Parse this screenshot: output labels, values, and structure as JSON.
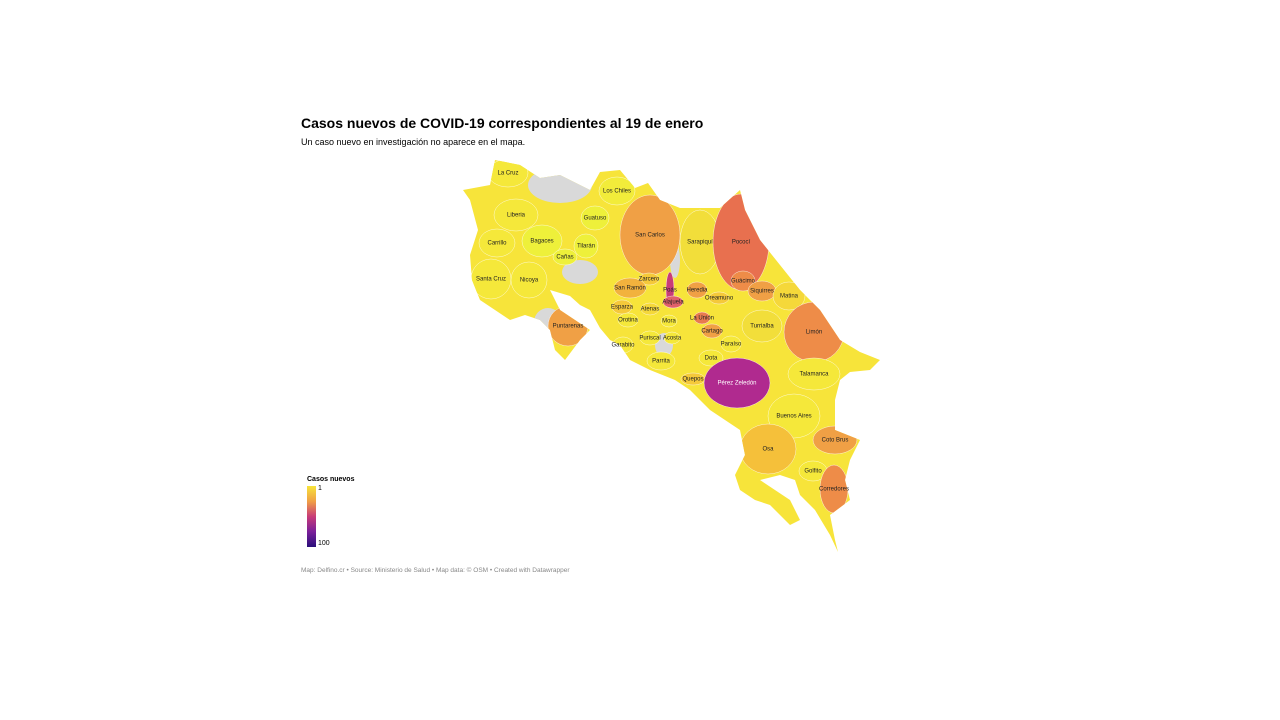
{
  "title": "Casos nuevos de COVID-19 correspondientes al 19 de enero",
  "subtitle": "Un caso nuevo en investigación no aparece en el mapa.",
  "no_data_color": "#d9d9d9",
  "base_color": "#f7e43a",
  "regions": [
    {
      "name": "La Cruz",
      "color": "#f5e83a"
    },
    {
      "name": "Los Chiles",
      "color": "#f2ec3a"
    },
    {
      "name": "Guatuso",
      "color": "#eef03a"
    },
    {
      "name": "Liberia",
      "color": "#f5e83a"
    },
    {
      "name": "Carrillo",
      "color": "#f5e83a"
    },
    {
      "name": "Bagaces",
      "color": "#eef03a"
    },
    {
      "name": "Tilarán",
      "color": "#eef03a"
    },
    {
      "name": "Cañas",
      "color": "#eef03a"
    },
    {
      "name": "San Carlos",
      "color": "#f0a045"
    },
    {
      "name": "Sarapiquí",
      "color": "#f2de3a"
    },
    {
      "name": "Pococí",
      "color": "#e8704f"
    },
    {
      "name": "Santa Cruz",
      "color": "#f5e83a"
    },
    {
      "name": "Nicoya",
      "color": "#f5e83a"
    },
    {
      "name": "Zarcero",
      "color": "#f5c93a"
    },
    {
      "name": "San Ramón",
      "color": "#f2b23d"
    },
    {
      "name": "Guácimo",
      "color": "#ee8c48"
    },
    {
      "name": "Siquirres",
      "color": "#f0a045"
    },
    {
      "name": "Heredia",
      "color": "#f0a045"
    },
    {
      "name": "Poás",
      "color": "#c83c78"
    },
    {
      "name": "Alajuela",
      "color": "#e0606a"
    },
    {
      "name": "Oreamuno",
      "color": "#f5c93a"
    },
    {
      "name": "Matina",
      "color": "#f5d83a"
    },
    {
      "name": "Esparza",
      "color": "#f5c93a"
    },
    {
      "name": "Atenas",
      "color": "#f5d83a"
    },
    {
      "name": "Puntarenas",
      "color": "#f0a045"
    },
    {
      "name": "Orotina",
      "color": "#f5e83a"
    },
    {
      "name": "Mora",
      "color": "#f5e83a"
    },
    {
      "name": "La Unión",
      "color": "#e87a50"
    },
    {
      "name": "Cartago",
      "color": "#f0a045"
    },
    {
      "name": "Turrialba",
      "color": "#f2de3a"
    },
    {
      "name": "Limón",
      "color": "#ee8c48"
    },
    {
      "name": "Garabito",
      "color": "#f5e83a"
    },
    {
      "name": "Puriscal",
      "color": "#f5e83a"
    },
    {
      "name": "Acosta",
      "color": "#f5e83a"
    },
    {
      "name": "Paraíso",
      "color": "#f5e83a"
    },
    {
      "name": "Parrita",
      "color": "#f5e83a"
    },
    {
      "name": "Dota",
      "color": "#f5e83a"
    },
    {
      "name": "Talamanca",
      "color": "#f5e83a"
    },
    {
      "name": "Quepos",
      "color": "#f5c93a"
    },
    {
      "name": "Pérez Zeledón",
      "color": "#b02a8f"
    },
    {
      "name": "Buenos Aires",
      "color": "#f5e83a"
    },
    {
      "name": "Coto Brus",
      "color": "#f0a045"
    },
    {
      "name": "Osa",
      "color": "#f5c03a"
    },
    {
      "name": "Golfito",
      "color": "#f5e83a"
    },
    {
      "name": "Corredores",
      "color": "#ee8c48"
    }
  ],
  "legend": {
    "title": "Casos nuevos",
    "ticks": [
      1,
      100
    ],
    "colors": [
      "#f7e43a",
      "#f0a045",
      "#c83c78",
      "#7a1f9a",
      "#2a0f7a"
    ]
  },
  "footer": "Map: Delfino.cr • Source: Ministerio de Salud • Map data: © OSM • Created with Datawrapper"
}
